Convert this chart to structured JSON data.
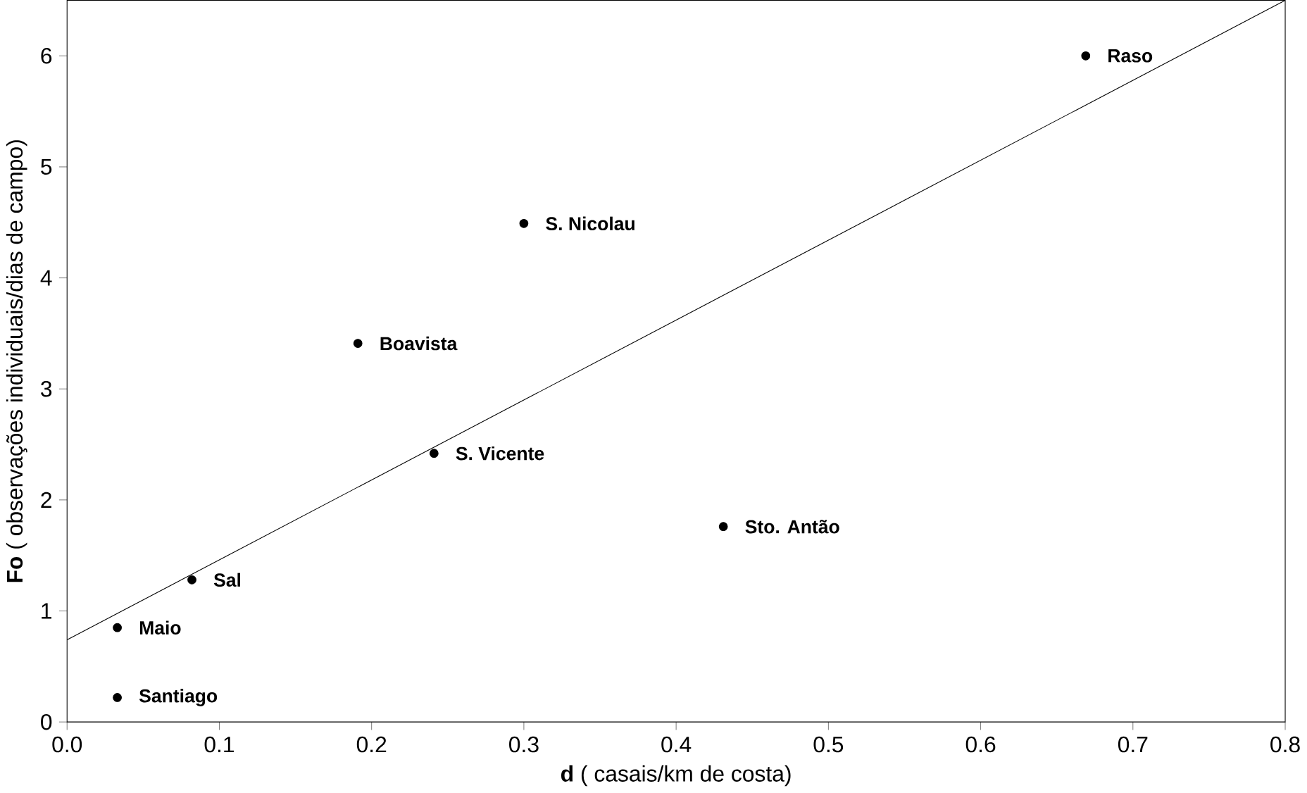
{
  "chart_data": {
    "type": "scatter",
    "xlabel": "**d** ( casais/km de costa)",
    "ylabel": "**Fo** ( observações individuais/dias de campo)",
    "xlim": [
      0,
      0.8
    ],
    "ylim": [
      0,
      6.5
    ],
    "xticks": [
      {
        "value": 0,
        "label": "0.0"
      },
      0.1,
      0.2,
      0.3,
      0.4,
      0.5,
      0.6,
      0.7,
      0.8
    ],
    "yticks": [
      0,
      1,
      2,
      3,
      4,
      5,
      6
    ],
    "series": [
      {
        "color": "#000000",
        "marker": "circle",
        "x": [
          0.669,
          0.3,
          0.191,
          0.241,
          0.431,
          0.082,
          0.033,
          0.033
        ],
        "values": [
          6.0,
          4.49,
          3.41,
          2.42,
          1.76,
          1.28,
          0.85,
          0.22
        ]
      },
      {
        "type": "line",
        "color": "#000000",
        "line_style": "solid",
        "marker": "none",
        "x": [
          0,
          0.8
        ],
        "values": [
          0.74,
          6.5
        ]
      }
    ],
    "annotations": [
      {
        "text": "Raso",
        "x": 0.669,
        "y": 6.0
      },
      {
        "text": "S. Nicolau",
        "x": 0.3,
        "y": 4.49
      },
      {
        "text": "Boavista",
        "x": 0.191,
        "y": 3.41
      },
      {
        "text": "S. Vicente",
        "x": 0.241,
        "y": 2.42
      },
      {
        "text": "Sto. Antão",
        "x": 0.431,
        "y": 1.76
      },
      {
        "text": "Sal",
        "x": 0.082,
        "y": 1.28
      },
      {
        "text": "Maio",
        "x": 0.033,
        "y": 0.85
      },
      {
        "text": "Santiago",
        "x": 0.033,
        "y": 0.22
      }
    ]
  }
}
